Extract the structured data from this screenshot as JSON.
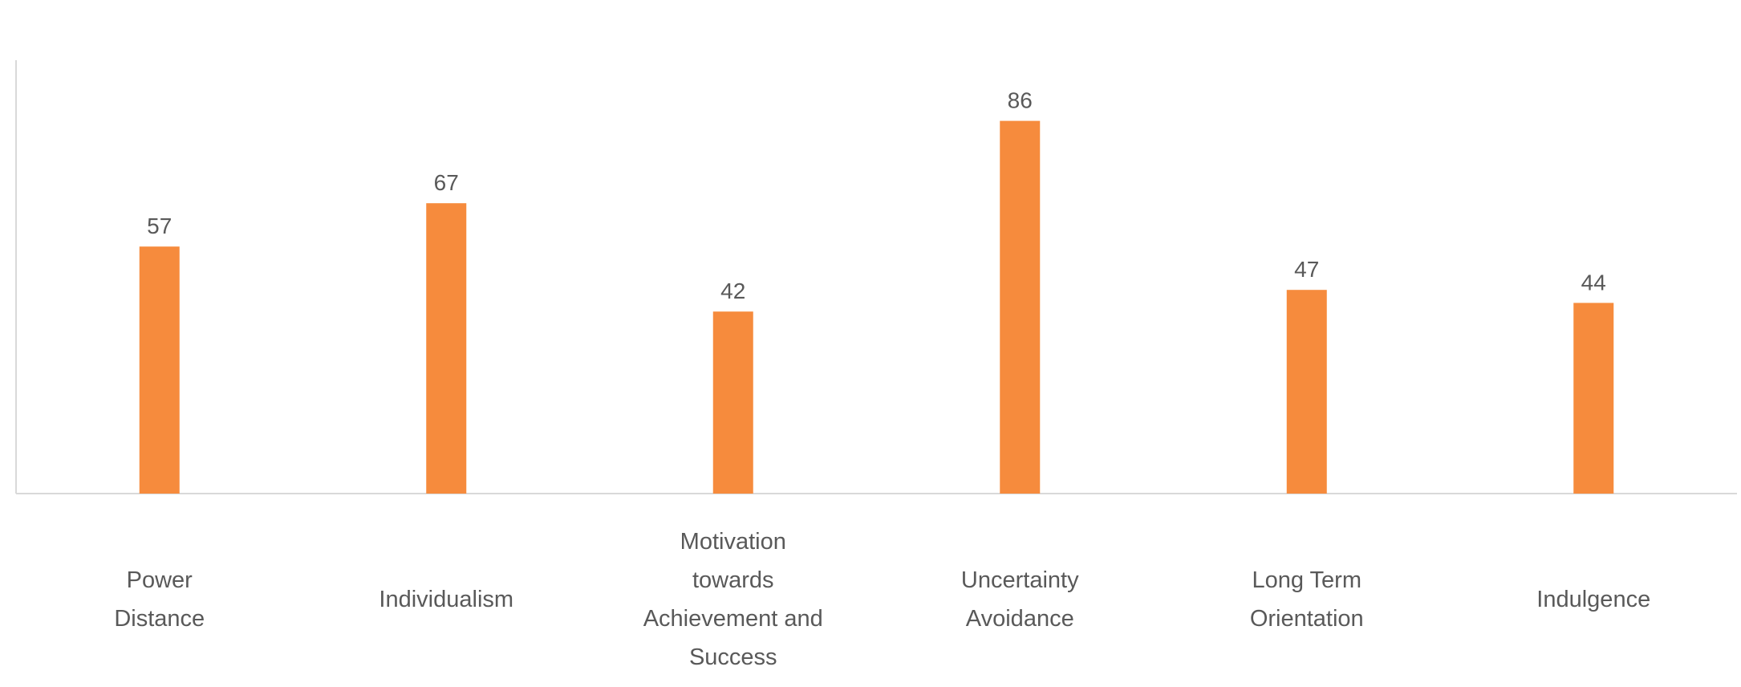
{
  "chart_data": {
    "type": "bar",
    "categories": [
      "Power Distance",
      "Individualism",
      "Motivation towards Achievement and Success",
      "Uncertainty Avoidance",
      "Long Term Orientation",
      "Indulgence"
    ],
    "category_label_lines": [
      [
        "Power",
        "Distance"
      ],
      [
        "Individualism"
      ],
      [
        "Motivation",
        "towards",
        "Achievement and",
        "Success"
      ],
      [
        "Uncertainty",
        "Avoidance"
      ],
      [
        "Long Term",
        "Orientation"
      ],
      [
        "Indulgence"
      ]
    ],
    "values": [
      57,
      67,
      42,
      86,
      47,
      44
    ],
    "title": "",
    "xlabel": "",
    "ylabel": "",
    "ylim": [
      0,
      100
    ],
    "grid": false,
    "legend": "none",
    "data_labels": true,
    "colors": {
      "bar": "#F68B3D",
      "axis": "#D9D9D9",
      "text": "#595959"
    }
  }
}
